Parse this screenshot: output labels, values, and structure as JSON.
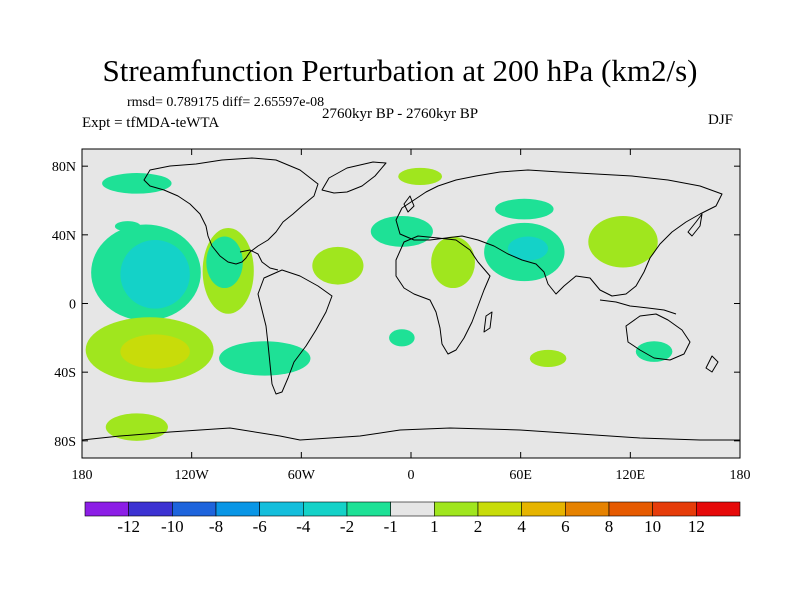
{
  "chart_data": {
    "type": "heatmap",
    "title": "Streamfunction Perturbation at 200 hPa (km2/s)",
    "stats": "rmsd= 0.789175 diff= 2.65597e-08",
    "left_subtitle": "Expt = tfMDA-teWTA",
    "center_subtitle": "2760kyr BP - 2760kyr BP",
    "right_subtitle": "DJF",
    "x_ticks": [
      {
        "lon": -180,
        "label": "180"
      },
      {
        "lon": -120,
        "label": "120W"
      },
      {
        "lon": -60,
        "label": "60W"
      },
      {
        "lon": 0,
        "label": "0"
      },
      {
        "lon": 60,
        "label": "60E"
      },
      {
        "lon": 120,
        "label": "120E"
      },
      {
        "lon": 180,
        "label": "180"
      }
    ],
    "y_ticks": [
      {
        "lat": 80,
        "label": "80N"
      },
      {
        "lat": 40,
        "label": "40N"
      },
      {
        "lat": 0,
        "label": "0"
      },
      {
        "lat": -40,
        "label": "40S"
      },
      {
        "lat": -80,
        "label": "80S"
      }
    ],
    "xlim": [
      -180,
      180
    ],
    "ylim": [
      -90,
      90
    ],
    "colorbar": {
      "colors": [
        "#8c1ee6",
        "#3c32d2",
        "#1e64dc",
        "#0a96e6",
        "#14bedc",
        "#14d2c8",
        "#1ee196",
        "#e6e6e6",
        "#a0e61e",
        "#c8dc0a",
        "#e6b400",
        "#e68200",
        "#e65a00",
        "#e63c0a",
        "#e60a0a"
      ],
      "labels": [
        "-12",
        "-10",
        "-8",
        "-6",
        "-4",
        "-2",
        "-1",
        "1",
        "2",
        "4",
        "6",
        "8",
        "10",
        "12"
      ]
    },
    "anomalies": [
      {
        "lon": -150,
        "lat": 70,
        "lon_r": 19,
        "lat_r": 6,
        "level": "-1"
      },
      {
        "lon": -155,
        "lat": 45,
        "lon_r": 7,
        "lat_r": 3,
        "level": "-1"
      },
      {
        "lon": -145,
        "lat": 18,
        "lon_r": 30,
        "lat_r": 28,
        "level": "-1"
      },
      {
        "lon": -140,
        "lat": 17,
        "lon_r": 19,
        "lat_r": 20,
        "level": "-2"
      },
      {
        "lon": -100,
        "lat": 19,
        "lon_r": 14,
        "lat_r": 25,
        "level": "1"
      },
      {
        "lon": -102,
        "lat": 24,
        "lon_r": 10,
        "lat_r": 15,
        "level": "-1"
      },
      {
        "lon": -143,
        "lat": -27,
        "lon_r": 35,
        "lat_r": 19,
        "level": "1"
      },
      {
        "lon": -140,
        "lat": -28,
        "lon_r": 19,
        "lat_r": 10,
        "level": "2"
      },
      {
        "lon": -150,
        "lat": -72,
        "lon_r": 17,
        "lat_r": 8,
        "level": "1"
      },
      {
        "lon": -80,
        "lat": -32,
        "lon_r": 25,
        "lat_r": 10,
        "level": "-1"
      },
      {
        "lon": -40,
        "lat": 22,
        "lon_r": 14,
        "lat_r": 11,
        "level": "1"
      },
      {
        "lon": 5,
        "lat": 74,
        "lon_r": 12,
        "lat_r": 5,
        "level": "1"
      },
      {
        "lon": -5,
        "lat": -20,
        "lon_r": 7,
        "lat_r": 5,
        "level": "-1"
      },
      {
        "lon": -5,
        "lat": 42,
        "lon_r": 17,
        "lat_r": 9,
        "level": "-1"
      },
      {
        "lon": 23,
        "lat": 24,
        "lon_r": 12,
        "lat_r": 15,
        "level": "1"
      },
      {
        "lon": 62,
        "lat": 55,
        "lon_r": 16,
        "lat_r": 6,
        "level": "-1"
      },
      {
        "lon": 62,
        "lat": 30,
        "lon_r": 22,
        "lat_r": 17,
        "level": "-1"
      },
      {
        "lon": 64,
        "lat": 32,
        "lon_r": 11,
        "lat_r": 7,
        "level": "-2"
      },
      {
        "lon": 116,
        "lat": 36,
        "lon_r": 19,
        "lat_r": 15,
        "level": "1"
      },
      {
        "lon": 75,
        "lat": -32,
        "lon_r": 10,
        "lat_r": 5,
        "level": "1"
      },
      {
        "lon": 133,
        "lat": -28,
        "lon_r": 10,
        "lat_r": 6,
        "level": "-1"
      }
    ]
  }
}
